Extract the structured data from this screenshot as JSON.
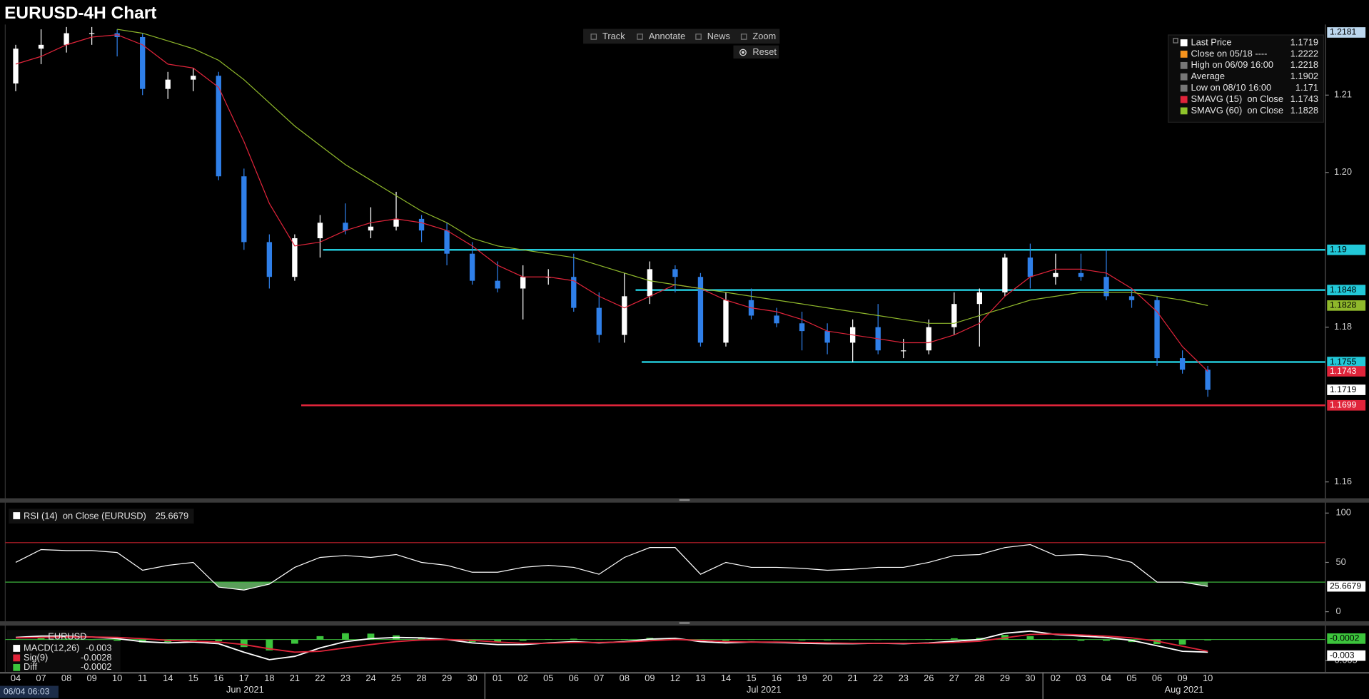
{
  "title": "EURUSD-4H Chart",
  "toolbar": [
    "Track",
    "Annotate",
    "News",
    "Zoom"
  ],
  "reset": "Reset",
  "timestamp": "06/04 06:03",
  "chart_data": [
    {
      "type": "candlestick",
      "categories": [
        "04",
        "07",
        "08",
        "09",
        "10",
        "11",
        "14",
        "15",
        "16",
        "17",
        "18",
        "21",
        "22",
        "23",
        "24",
        "25",
        "28",
        "29",
        "30",
        "01",
        "02",
        "05",
        "06",
        "07",
        "08",
        "09",
        "12",
        "13",
        "14",
        "15",
        "16",
        "19",
        "20",
        "21",
        "22",
        "23",
        "26",
        "27",
        "28",
        "29",
        "30",
        "02",
        "03",
        "04",
        "05",
        "06",
        "09",
        "10"
      ],
      "x_group_labels": [
        "Jun 2021",
        "Jul 2021",
        "Aug 2021"
      ],
      "open": [
        1.2115,
        1.216,
        1.2165,
        1.218,
        1.218,
        1.2175,
        1.2108,
        1.212,
        1.2125,
        1.1995,
        1.191,
        1.1865,
        1.1915,
        1.1935,
        1.1925,
        1.193,
        1.194,
        1.1925,
        1.1895,
        1.186,
        1.185,
        1.1865,
        1.1865,
        1.1825,
        1.179,
        1.184,
        1.1875,
        1.1865,
        1.178,
        1.1835,
        1.1815,
        1.1805,
        1.1795,
        1.178,
        1.18,
        1.177,
        1.177,
        1.18,
        1.183,
        1.1845,
        1.189,
        1.1865,
        1.187,
        1.1865,
        1.184,
        1.1835,
        1.176,
        1.1745
      ],
      "high": [
        1.2165,
        1.2185,
        1.2188,
        1.2188,
        1.2185,
        1.218,
        1.213,
        1.2135,
        1.213,
        1.2005,
        1.192,
        1.192,
        1.1945,
        1.196,
        1.1955,
        1.1975,
        1.1945,
        1.1935,
        1.191,
        1.1885,
        1.188,
        1.1875,
        1.1895,
        1.1845,
        1.187,
        1.1885,
        1.188,
        1.187,
        1.1845,
        1.185,
        1.1825,
        1.182,
        1.1805,
        1.181,
        1.183,
        1.1785,
        1.181,
        1.1845,
        1.185,
        1.1895,
        1.1908,
        1.1895,
        1.1895,
        1.19,
        1.185,
        1.184,
        1.177,
        1.175
      ],
      "low": [
        1.2105,
        1.214,
        1.2155,
        1.2165,
        1.215,
        1.21,
        1.2095,
        1.2105,
        1.199,
        1.19,
        1.185,
        1.186,
        1.189,
        1.192,
        1.1915,
        1.1925,
        1.191,
        1.188,
        1.1855,
        1.1845,
        1.181,
        1.1855,
        1.182,
        1.178,
        1.178,
        1.183,
        1.1845,
        1.1775,
        1.1775,
        1.181,
        1.18,
        1.177,
        1.1765,
        1.1755,
        1.1765,
        1.176,
        1.1765,
        1.179,
        1.1775,
        1.184,
        1.185,
        1.1855,
        1.186,
        1.1835,
        1.1825,
        1.175,
        1.174,
        1.171
      ],
      "close": [
        1.216,
        1.2165,
        1.218,
        1.218,
        1.2175,
        1.2108,
        1.212,
        1.2125,
        1.1995,
        1.191,
        1.1865,
        1.1915,
        1.1935,
        1.1925,
        1.193,
        1.194,
        1.1925,
        1.1895,
        1.186,
        1.185,
        1.1865,
        1.1865,
        1.1825,
        1.179,
        1.184,
        1.1875,
        1.1865,
        1.178,
        1.1835,
        1.1815,
        1.1805,
        1.1795,
        1.178,
        1.18,
        1.177,
        1.177,
        1.18,
        1.183,
        1.1845,
        1.189,
        1.1865,
        1.187,
        1.1865,
        1.184,
        1.1835,
        1.176,
        1.1745,
        1.1719
      ],
      "up_color": "#ffffff",
      "down_color": "#2f7fe8",
      "series": [
        {
          "color": "#e0243a",
          "values": [
            1.214,
            1.215,
            1.2165,
            1.2175,
            1.2178,
            1.2165,
            1.214,
            1.2135,
            1.211,
            1.204,
            1.196,
            1.1905,
            1.191,
            1.1925,
            1.1935,
            1.194,
            1.1935,
            1.1925,
            1.1905,
            1.188,
            1.1865,
            1.1865,
            1.186,
            1.184,
            1.1825,
            1.184,
            1.1855,
            1.185,
            1.1835,
            1.1825,
            1.182,
            1.181,
            1.1795,
            1.179,
            1.1785,
            1.178,
            1.178,
            1.179,
            1.1805,
            1.184,
            1.1865,
            1.1875,
            1.1875,
            1.187,
            1.185,
            1.182,
            1.1775,
            1.1743
          ]
        },
        {
          "color": "#8fb82b",
          "values": [
            null,
            null,
            null,
            null,
            1.2185,
            1.218,
            1.217,
            1.216,
            1.2145,
            1.212,
            1.209,
            1.206,
            1.2035,
            1.201,
            1.199,
            1.197,
            1.195,
            1.1935,
            1.1915,
            1.1905,
            1.19,
            1.1895,
            1.189,
            1.188,
            1.187,
            1.186,
            1.1855,
            1.185,
            1.1845,
            1.184,
            1.1835,
            1.183,
            1.1825,
            1.182,
            1.1815,
            1.181,
            1.1805,
            1.1805,
            1.1815,
            1.1825,
            1.1835,
            1.184,
            1.1845,
            1.1845,
            1.1845,
            1.184,
            1.1835,
            1.1828
          ]
        }
      ],
      "levels": [
        {
          "value": 1.19,
          "color": "#22c8d8"
        },
        {
          "value": 1.1848,
          "color": "#22c8d8"
        },
        {
          "value": 1.1755,
          "color": "#22c8d8"
        },
        {
          "value": 1.1699,
          "color": "#e0243a"
        }
      ],
      "tags": [
        {
          "value": 1.2181,
          "color": "#bcd7ee"
        }
      ],
      "ylim": [
        1.158,
        1.2189
      ],
      "yticks": [
        1.16,
        1.18,
        {
          "value": 1.2,
          "label": "1.20"
        },
        1.21
      ],
      "legend": [
        {
          "name": "Last Price",
          "value": 1.1719,
          "color": "#ffffff"
        },
        {
          "name": "Close on 05/18 ----",
          "value": 1.2222,
          "color": "#f7941d"
        },
        {
          "name": "High on 06/09 16:00",
          "value": 1.2218,
          "color": "#777777"
        },
        {
          "name": "Average",
          "value": 1.1902,
          "color": "#777777"
        },
        {
          "name": "Low on 08/10 16:00",
          "value": 1.171,
          "color": "#777777"
        },
        {
          "name": "SMAVG (15)  on Close",
          "value": 1.1743,
          "color": "#e0243a"
        },
        {
          "name": "SMAVG (60)  on Close",
          "value": 1.1828,
          "color": "#8fc42b"
        }
      ]
    },
    {
      "type": "line",
      "title": "RSI (14)  on Close (EURUSD)",
      "color": "#ffffff",
      "values": [
        50,
        63,
        62,
        62,
        60,
        42,
        47,
        50,
        25,
        22,
        28,
        45,
        55,
        57,
        55,
        58,
        50,
        47,
        40,
        40,
        45,
        47,
        45,
        38,
        55,
        65,
        65,
        38,
        50,
        45,
        45,
        44,
        42,
        43,
        45,
        45,
        50,
        57,
        58,
        65,
        68,
        57,
        58,
        56,
        50,
        30,
        30,
        25.6679
      ],
      "levels": [
        {
          "value": 70,
          "color": "#c0202a"
        },
        {
          "value": 30,
          "color": "#3cb43c"
        }
      ],
      "fill_color": "#5a9e5a",
      "ylim": [
        -9.7,
        109.7
      ],
      "yticks": [
        0,
        50,
        100
      ]
    },
    {
      "type": "line",
      "title": "EURUSD",
      "series": [
        {
          "name": "MACD(12,26)",
          "color": "#ffffff",
          "values": [
            0.0005,
            0.0008,
            0.0008,
            0.0006,
            0.0002,
            -0.0005,
            -0.0008,
            -0.0006,
            -0.001,
            -0.003,
            -0.0048,
            -0.004,
            -0.002,
            -0.0005,
            0.0002,
            0.0005,
            0.0004,
            0,
            -0.0008,
            -0.0012,
            -0.0012,
            -0.0008,
            -0.0005,
            -0.0008,
            -0.0005,
            0.0001,
            0.0003,
            -0.0005,
            -0.0008,
            -0.0006,
            -0.0007,
            -0.0009,
            -0.001,
            -0.001,
            -0.0009,
            -0.001,
            -0.0008,
            -0.0004,
            0,
            0.0015,
            0.002,
            0.0012,
            0.0008,
            0.0005,
            -0.0002,
            -0.0015,
            -0.0028,
            -0.003
          ]
        },
        {
          "name": "Sig(9)",
          "color": "#e0243a",
          "values": [
            0.0004,
            0.0005,
            0.0006,
            0.0006,
            0.0005,
            0.0002,
            -0.0002,
            -0.0004,
            -0.0006,
            -0.0012,
            -0.0022,
            -0.003,
            -0.0028,
            -0.002,
            -0.0012,
            -0.0005,
            -0.0001,
            0,
            -0.0002,
            -0.0006,
            -0.0009,
            -0.0009,
            -0.0007,
            -0.0007,
            -0.0006,
            -0.0003,
            0,
            -0.0002,
            -0.0005,
            -0.0006,
            -0.0006,
            -0.0007,
            -0.0008,
            -0.0009,
            -0.0009,
            -0.0009,
            -0.0009,
            -0.0007,
            -0.0004,
            0.0004,
            0.0012,
            0.0013,
            0.0011,
            0.0008,
            0.0004,
            -0.0004,
            -0.0016,
            -0.0028
          ]
        },
        {
          "name": "Diff",
          "type": "bar",
          "color": "#3cc43c",
          "values": [
            0.0001,
            0.0003,
            0.0002,
            0,
            -0.0003,
            -0.0007,
            -0.0006,
            -0.0002,
            -0.0004,
            -0.0018,
            -0.0026,
            -0.001,
            0.0008,
            0.0015,
            0.0014,
            0.001,
            0.0005,
            0,
            -0.0006,
            -0.0006,
            -0.0003,
            0.0001,
            0.0002,
            -0.0001,
            0.0001,
            0.0004,
            0.0003,
            -0.0003,
            -0.0003,
            0,
            -0.0001,
            -0.0002,
            -0.0002,
            -0.0001,
            0,
            -0.0001,
            0.0001,
            0.0003,
            0.0004,
            0.0011,
            0.0008,
            -0.0001,
            -0.0003,
            -0.0003,
            -0.0006,
            -0.0011,
            -0.0012,
            -0.0002
          ]
        }
      ],
      "ylim": [
        -0.0077,
        0.0033
      ],
      "yticks": [
        -0.005
      ]
    }
  ]
}
